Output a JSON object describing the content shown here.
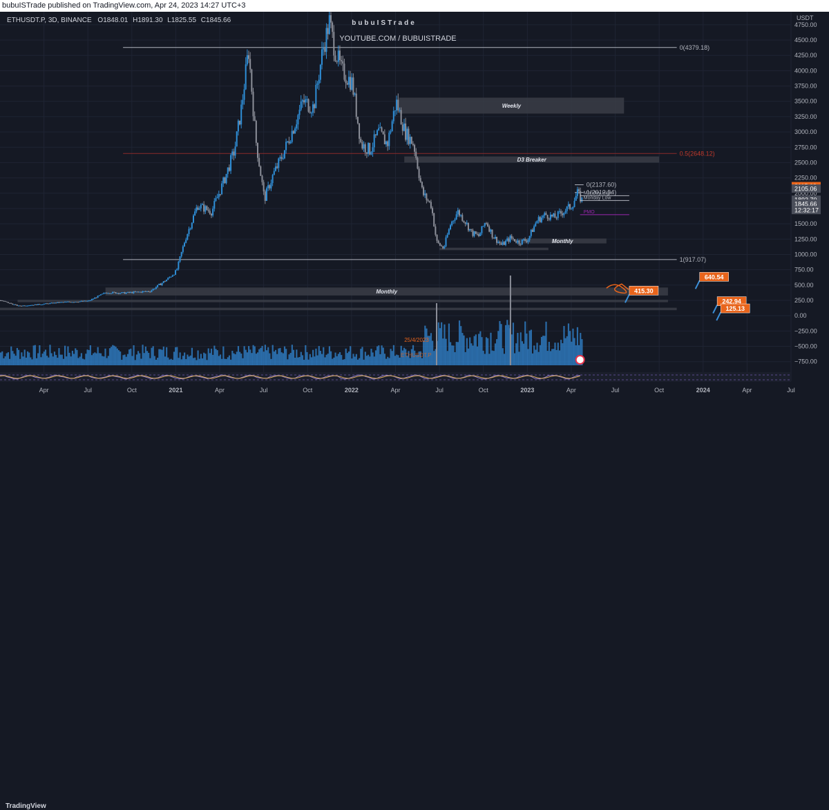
{
  "header": {
    "published_text": "bubuISTrade published on TradingView.com, Apr 24, 2023 14:27 UTC+3"
  },
  "symbol": {
    "name": "ETHUSDT.P, 3D, BINANCE",
    "open_label": "O",
    "open": "1848.01",
    "high_label": "H",
    "high": "1891.30",
    "low_label": "L",
    "low": "1825.55",
    "close_label": "C",
    "close": "1845.66"
  },
  "watermark": {
    "author": "bubuISTrade",
    "channel": "YOUTUBE.COM / BUBUISTRADE"
  },
  "footer": {
    "brand": "TradingView"
  },
  "colors": {
    "background": "#151924",
    "grid": "#1f2433",
    "candle_up": "#2f8fd8",
    "candle_down": "#8c8f99",
    "zone": "#3a3d47",
    "accent_orange": "#e8641b",
    "purple": "#9c27b0",
    "red_line": "#8b2a2a"
  },
  "chart_data": {
    "type": "line",
    "symbol": "ETHUSDT.P",
    "interval": "3D",
    "exchange": "BINANCE",
    "ylabel": "USDT",
    "ylim": [
      -900,
      4850
    ],
    "y_ticks": [
      "4750.00",
      "4500.00",
      "4250.00",
      "4000.00",
      "3750.00",
      "3500.00",
      "3250.00",
      "3000.00",
      "2750.00",
      "2500.00",
      "2250.00",
      "2000.00",
      "1750.00",
      "1500.00",
      "1250.00",
      "1000.00",
      "750.00",
      "500.00",
      "250.00",
      "0.00",
      "−250.00",
      "−500.00",
      "−750.00"
    ],
    "x_ticks": [
      {
        "label": "Apr",
        "t": 2020.25
      },
      {
        "label": "Jul",
        "t": 2020.5
      },
      {
        "label": "Oct",
        "t": 2020.75
      },
      {
        "label": "2021",
        "t": 2021.0
      },
      {
        "label": "Apr",
        "t": 2021.25
      },
      {
        "label": "Jul",
        "t": 2021.5
      },
      {
        "label": "Oct",
        "t": 2021.75
      },
      {
        "label": "2022",
        "t": 2022.0
      },
      {
        "label": "Apr",
        "t": 2022.25
      },
      {
        "label": "Jul",
        "t": 2022.5
      },
      {
        "label": "Oct",
        "t": 2022.75
      },
      {
        "label": "2023",
        "t": 2023.0
      },
      {
        "label": "Apr",
        "t": 2023.25
      },
      {
        "label": "Jul",
        "t": 2023.5
      },
      {
        "label": "Oct",
        "t": 2023.75
      },
      {
        "label": "2024",
        "t": 2024.0
      },
      {
        "label": "Apr",
        "t": 2024.25
      },
      {
        "label": "Jul",
        "t": 2024.5
      }
    ],
    "xlim": [
      2020.0,
      2024.5
    ],
    "price_series": [
      [
        2020.0,
        250
      ],
      [
        2020.1,
        160
      ],
      [
        2020.2,
        180
      ],
      [
        2020.35,
        220
      ],
      [
        2020.5,
        240
      ],
      [
        2020.6,
        380
      ],
      [
        2020.7,
        370
      ],
      [
        2020.85,
        400
      ],
      [
        2020.95,
        600
      ],
      [
        2021.0,
        730
      ],
      [
        2021.05,
        1250
      ],
      [
        2021.12,
        1800
      ],
      [
        2021.2,
        1700
      ],
      [
        2021.27,
        2200
      ],
      [
        2021.33,
        2700
      ],
      [
        2021.37,
        3400
      ],
      [
        2021.41,
        4350
      ],
      [
        2021.45,
        2900
      ],
      [
        2021.5,
        1900
      ],
      [
        2021.55,
        2300
      ],
      [
        2021.6,
        2600
      ],
      [
        2021.67,
        3100
      ],
      [
        2021.72,
        3500
      ],
      [
        2021.78,
        3400
      ],
      [
        2021.83,
        4300
      ],
      [
        2021.87,
        4800
      ],
      [
        2021.9,
        4350
      ],
      [
        2021.94,
        4000
      ],
      [
        2022.0,
        3800
      ],
      [
        2022.05,
        2800
      ],
      [
        2022.1,
        2700
      ],
      [
        2022.15,
        3000
      ],
      [
        2022.2,
        2800
      ],
      [
        2022.25,
        3500
      ],
      [
        2022.3,
        3000
      ],
      [
        2022.35,
        2800
      ],
      [
        2022.4,
        2000
      ],
      [
        2022.45,
        1800
      ],
      [
        2022.48,
        1200
      ],
      [
        2022.52,
        1100
      ],
      [
        2022.56,
        1500
      ],
      [
        2022.6,
        1700
      ],
      [
        2022.64,
        1550
      ],
      [
        2022.68,
        1350
      ],
      [
        2022.72,
        1300
      ],
      [
        2022.76,
        1550
      ],
      [
        2022.8,
        1300
      ],
      [
        2022.85,
        1150
      ],
      [
        2022.9,
        1270
      ],
      [
        2022.95,
        1200
      ],
      [
        2023.0,
        1250
      ],
      [
        2023.05,
        1550
      ],
      [
        2023.1,
        1650
      ],
      [
        2023.15,
        1600
      ],
      [
        2023.2,
        1700
      ],
      [
        2023.25,
        1800
      ],
      [
        2023.28,
        2000
      ],
      [
        2023.31,
        1870
      ]
    ],
    "price_tags": [
      {
        "value": "2115.68",
        "price": 2115.68,
        "color": "#e8641b"
      },
      {
        "value": "2105.06",
        "price": 2075,
        "color": "#4a4e5a"
      },
      {
        "value": "1893.70",
        "price": 1893.7,
        "color": "#4a4e5a"
      },
      {
        "value": "1845.66",
        "price": 1830,
        "color": "#4a4e5a"
      },
      {
        "value": "12:32:17",
        "price": 1725,
        "color": "#4a4e5a"
      }
    ],
    "fib_levels": [
      {
        "label": "0(4379.18)",
        "price": 4379.18,
        "t0": 2020.7,
        "t1": 2023.85,
        "color": "#b2b5be"
      },
      {
        "label": "0.5(2648.12)",
        "price": 2648.12,
        "t0": 2020.7,
        "t1": 2023.85,
        "color": "#8b2a2a"
      },
      {
        "label": "1(917.07)",
        "price": 917.07,
        "t0": 2020.7,
        "t1": 2023.85,
        "color": "#b2b5be"
      },
      {
        "label": "0(2137.60)",
        "price": 2137.6,
        "t0": 2023.27,
        "t1": 2023.32,
        "color": "#b2b5be"
      },
      {
        "label": "1(2012.54)",
        "price": 2012.54,
        "t0": 2023.27,
        "t1": 2023.32,
        "color": "#b2b5be"
      }
    ],
    "zones": [
      {
        "label": "Weekly",
        "t0": 2022.27,
        "t1": 2023.55,
        "p0": 3300,
        "p1": 3560
      },
      {
        "label": "D3 Breaker",
        "t0": 2022.3,
        "t1": 2023.75,
        "p0": 2500,
        "p1": 2600
      },
      {
        "label": "Monthly",
        "t0": 2022.95,
        "t1": 2023.45,
        "p0": 1180,
        "p1": 1260
      },
      {
        "label": "",
        "t0": 2022.5,
        "t1": 2023.12,
        "p0": 1070,
        "p1": 1110
      },
      {
        "label": "Monthly",
        "t0": 2020.6,
        "t1": 2023.8,
        "p0": 330,
        "p1": 460
      },
      {
        "label": "",
        "t0": 2020.1,
        "t1": 2023.8,
        "p0": 220,
        "p1": 260
      },
      {
        "label": "",
        "t0": 2020.0,
        "t1": 2023.85,
        "p0": 90,
        "p1": 130
      }
    ],
    "short_labels": [
      {
        "label": "Monday High",
        "price": 1960
      },
      {
        "label": "Monday Low",
        "price": 1880
      },
      {
        "label": "PMO",
        "price": 1650
      }
    ],
    "callouts": [
      {
        "value": "640.54",
        "price": 640.54,
        "t": 2023.98
      },
      {
        "value": "415.30",
        "price": 415.3,
        "t": 2023.58
      },
      {
        "value": "242.94",
        "price": 242.94,
        "t": 2024.08
      },
      {
        "value": "125.13",
        "price": 125.13,
        "t": 2024.1
      }
    ],
    "volume_annotation": [
      "25/4/2023",
      "ETHUSDT.P"
    ]
  }
}
